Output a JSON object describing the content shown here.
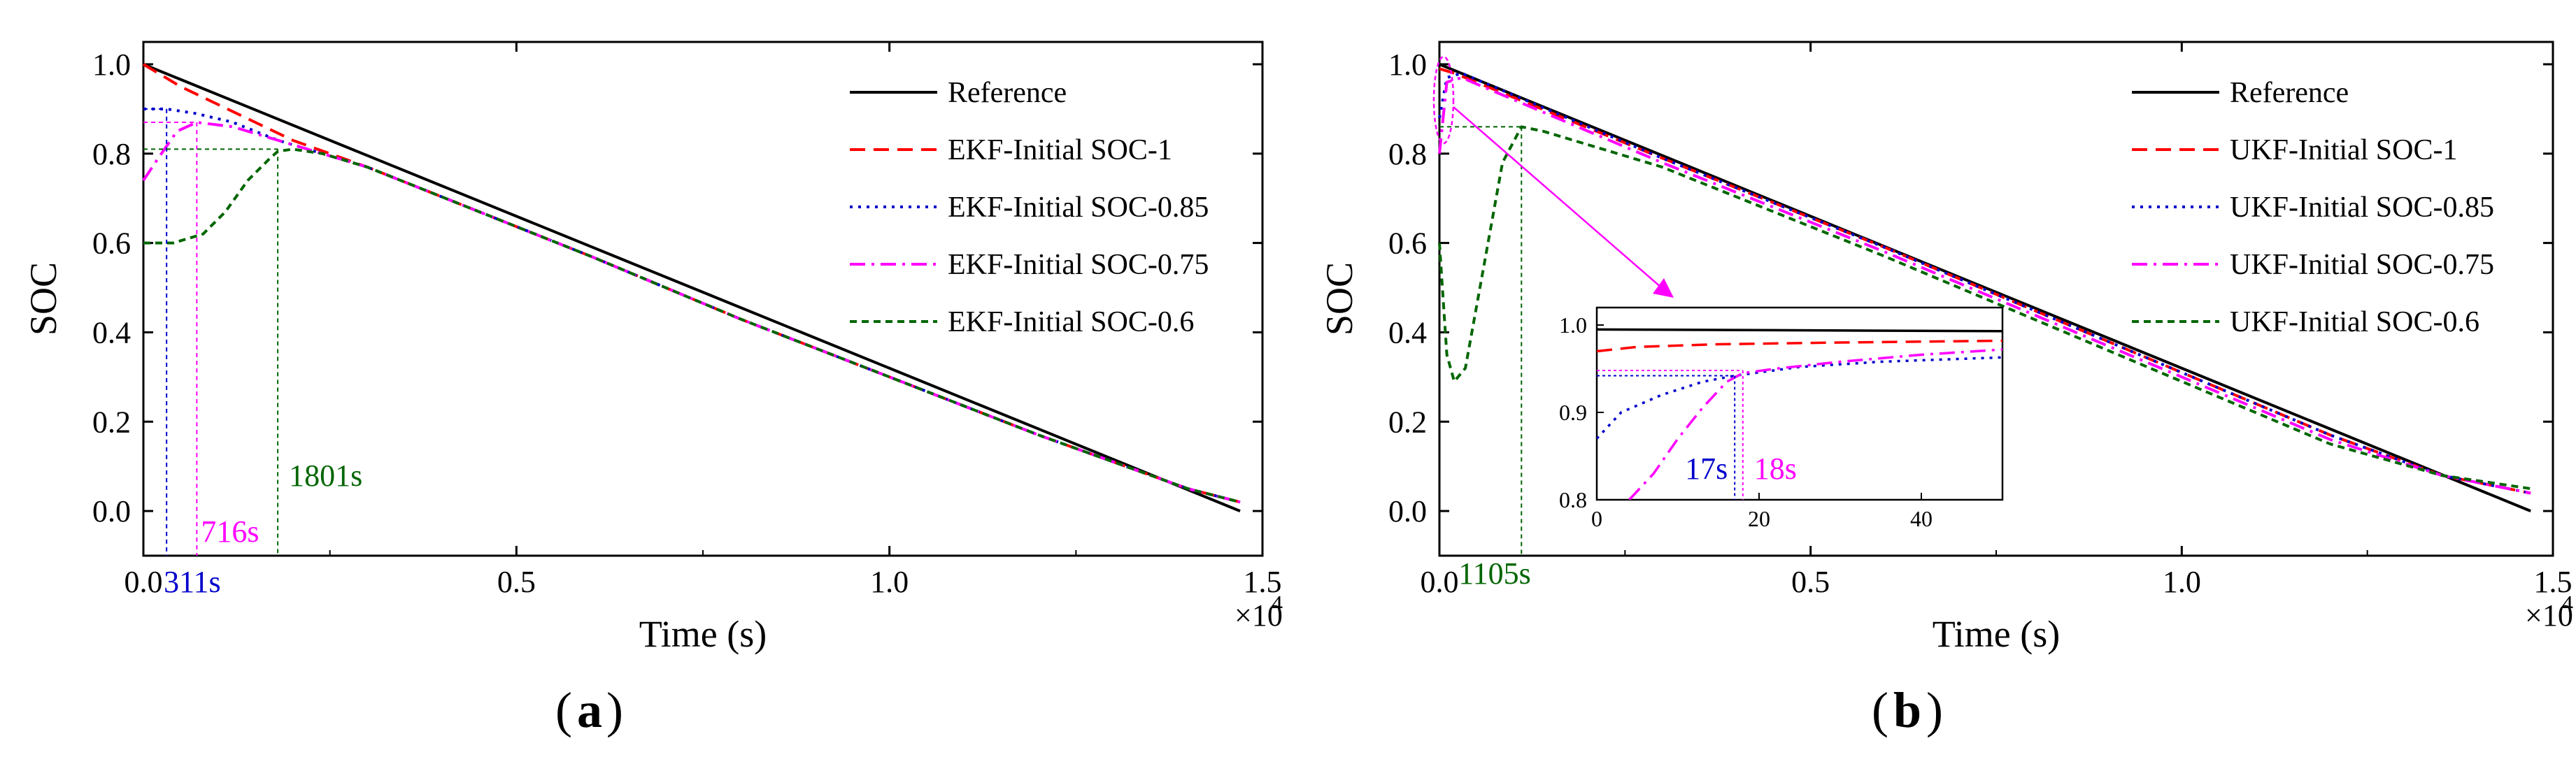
{
  "figure": {
    "label_a": "a",
    "label_b": "b"
  },
  "colors": {
    "reference": "#000000",
    "soc1": "#ff0000",
    "soc085": "#0000cc",
    "soc075": "#ff00ff",
    "soc06": "#006600",
    "ink": "#000000"
  },
  "chart_data": [
    {
      "type": "line",
      "panel": "a",
      "title": "",
      "xlabel": "Time (s)",
      "ylabel": "SOC",
      "xlim": [
        0,
        15000
      ],
      "ylim": [
        -0.1,
        1.05
      ],
      "x_multiplier": "×10",
      "x_multiplier_exp": "4",
      "x_ticks": [
        0,
        5000,
        10000,
        15000
      ],
      "x_tick_labels": [
        "0.0",
        "0.5",
        "1.0",
        "1.5"
      ],
      "y_ticks": [
        0,
        0.2,
        0.4,
        0.6,
        0.8,
        1.0
      ],
      "y_tick_labels": [
        "0.0",
        "0.2",
        "0.4",
        "0.6",
        "0.8",
        "1.0"
      ],
      "legend_position": "top-right",
      "series": [
        {
          "name": "Reference",
          "color_key": "reference",
          "dash": "solid",
          "x": [
            0,
            14700
          ],
          "y": [
            1.0,
            0.0
          ]
        },
        {
          "name": "EKF-Initial SOC-1",
          "color_key": "soc1",
          "dash": "dashed",
          "x": [
            0,
            500,
            1000,
            1500,
            2000,
            3000,
            6000,
            8000,
            10000,
            12000,
            14000,
            14700
          ],
          "y": [
            1.0,
            0.95,
            0.91,
            0.87,
            0.83,
            0.77,
            0.57,
            0.43,
            0.3,
            0.17,
            0.05,
            0.02
          ]
        },
        {
          "name": "EKF-Initial SOC-0.85",
          "color_key": "soc085",
          "dash": "dotted",
          "x": [
            0,
            311,
            700,
            1200,
            1800,
            2400,
            3000,
            6000,
            8000,
            10000,
            12000,
            14000,
            14700
          ],
          "y": [
            0.9,
            0.9,
            0.89,
            0.87,
            0.83,
            0.8,
            0.77,
            0.57,
            0.43,
            0.3,
            0.17,
            0.05,
            0.02
          ]
        },
        {
          "name": "EKF-Initial SOC-0.75",
          "color_key": "soc075",
          "dash": "dashdot",
          "x": [
            0,
            200,
            450,
            716,
            1200,
            1800,
            2400,
            3000,
            6000,
            8000,
            10000,
            12000,
            14000,
            14700
          ],
          "y": [
            0.74,
            0.79,
            0.85,
            0.87,
            0.86,
            0.83,
            0.8,
            0.77,
            0.57,
            0.43,
            0.3,
            0.17,
            0.05,
            0.02
          ]
        },
        {
          "name": "EKF-Initial SOC-0.6",
          "color_key": "soc06",
          "dash": "shortdash",
          "x": [
            0,
            400,
            800,
            1100,
            1400,
            1700,
            1801,
            2000,
            2400,
            3000,
            6000,
            8000,
            10000,
            12000,
            14000,
            14700
          ],
          "y": [
            0.6,
            0.6,
            0.62,
            0.67,
            0.74,
            0.79,
            0.805,
            0.81,
            0.8,
            0.77,
            0.57,
            0.43,
            0.3,
            0.17,
            0.05,
            0.02
          ]
        }
      ],
      "annotations": [
        {
          "text": "311s",
          "x": 311,
          "y_level": 0.9,
          "color_key": "soc085"
        },
        {
          "text": "716s",
          "x": 716,
          "y_level": 0.87,
          "color_key": "soc075"
        },
        {
          "text": "1801s",
          "x": 1801,
          "y_level": 0.81,
          "color_key": "soc06"
        }
      ]
    },
    {
      "type": "line",
      "panel": "b",
      "title": "",
      "xlabel": "Time (s)",
      "ylabel": "SOC",
      "xlim": [
        0,
        15000
      ],
      "ylim": [
        -0.1,
        1.05
      ],
      "x_multiplier": "×10",
      "x_multiplier_exp": "4",
      "x_ticks": [
        0,
        5000,
        10000,
        15000
      ],
      "x_tick_labels": [
        "0.0",
        "0.5",
        "1.0",
        "1.5"
      ],
      "y_ticks": [
        0,
        0.2,
        0.4,
        0.6,
        0.8,
        1.0
      ],
      "y_tick_labels": [
        "0.0",
        "0.2",
        "0.4",
        "0.6",
        "0.8",
        "1.0"
      ],
      "legend_position": "top-right",
      "series": [
        {
          "name": "Reference",
          "color_key": "reference",
          "dash": "solid",
          "x": [
            0,
            14700
          ],
          "y": [
            1.0,
            0.0
          ]
        },
        {
          "name": "UKF-Initial SOC-1",
          "color_key": "soc1",
          "dash": "dashed",
          "x": [
            0,
            200,
            3000,
            6000,
            9000,
            12000,
            13500,
            14700
          ],
          "y": [
            0.99,
            0.98,
            0.79,
            0.59,
            0.38,
            0.17,
            0.08,
            0.04
          ]
        },
        {
          "name": "UKF-Initial SOC-0.85",
          "color_key": "soc085",
          "dash": "dotted",
          "x": [
            0,
            100,
            300,
            3000,
            6000,
            9000,
            12000,
            13500,
            14700
          ],
          "y": [
            0.88,
            0.97,
            0.98,
            0.79,
            0.59,
            0.38,
            0.17,
            0.08,
            0.04
          ]
        },
        {
          "name": "UKF-Initial SOC-0.75",
          "color_key": "soc075",
          "dash": "dashdot",
          "x": [
            0,
            100,
            300,
            3000,
            6000,
            9000,
            12000,
            13500,
            14700
          ],
          "y": [
            0.8,
            0.96,
            0.97,
            0.78,
            0.58,
            0.37,
            0.16,
            0.08,
            0.04
          ]
        },
        {
          "name": "UKF-Initial SOC-0.6",
          "color_key": "soc06",
          "dash": "shortdash",
          "x": [
            0,
            100,
            200,
            350,
            600,
            850,
            1105,
            1400,
            3000,
            6000,
            9000,
            12000,
            13500,
            14700
          ],
          "y": [
            0.6,
            0.35,
            0.29,
            0.32,
            0.55,
            0.78,
            0.86,
            0.85,
            0.77,
            0.57,
            0.36,
            0.15,
            0.08,
            0.05
          ]
        }
      ],
      "annotations": [
        {
          "text": "1105s",
          "x": 1105,
          "y_level": 0.86,
          "color_key": "soc06"
        }
      ],
      "inset": {
        "xlim": [
          0,
          50
        ],
        "ylim": [
          0.8,
          1.02
        ],
        "x_ticks": [
          0,
          20,
          40
        ],
        "x_tick_labels": [
          "0",
          "20",
          "40"
        ],
        "y_ticks": [
          0.8,
          0.9,
          1.0
        ],
        "y_tick_labels": [
          "0.8",
          "0.9",
          "1.0"
        ],
        "series": [
          {
            "color_key": "reference",
            "dash": "solid",
            "x": [
              0,
              50
            ],
            "y": [
              0.995,
              0.993
            ]
          },
          {
            "color_key": "soc1",
            "dash": "dashed",
            "x": [
              0,
              5,
              15,
              30,
              50
            ],
            "y": [
              0.97,
              0.975,
              0.978,
              0.98,
              0.982
            ]
          },
          {
            "color_key": "soc085",
            "dash": "dotted",
            "x": [
              0,
              3,
              8,
              13,
              17,
              25,
              35,
              50
            ],
            "y": [
              0.87,
              0.9,
              0.92,
              0.935,
              0.942,
              0.952,
              0.958,
              0.963
            ]
          },
          {
            "color_key": "soc075",
            "dash": "dashdot",
            "x": [
              4,
              7,
              10,
              13,
              16,
              18,
              22,
              30,
              40,
              50
            ],
            "y": [
              0.8,
              0.83,
              0.87,
              0.905,
              0.935,
              0.945,
              0.95,
              0.958,
              0.966,
              0.972
            ]
          }
        ],
        "annotations": [
          {
            "text": "17s",
            "x": 17,
            "y_level": 0.942,
            "color_key": "soc085"
          },
          {
            "text": "18s",
            "x": 18,
            "y_level": 0.948,
            "color_key": "soc075"
          }
        ]
      }
    }
  ]
}
